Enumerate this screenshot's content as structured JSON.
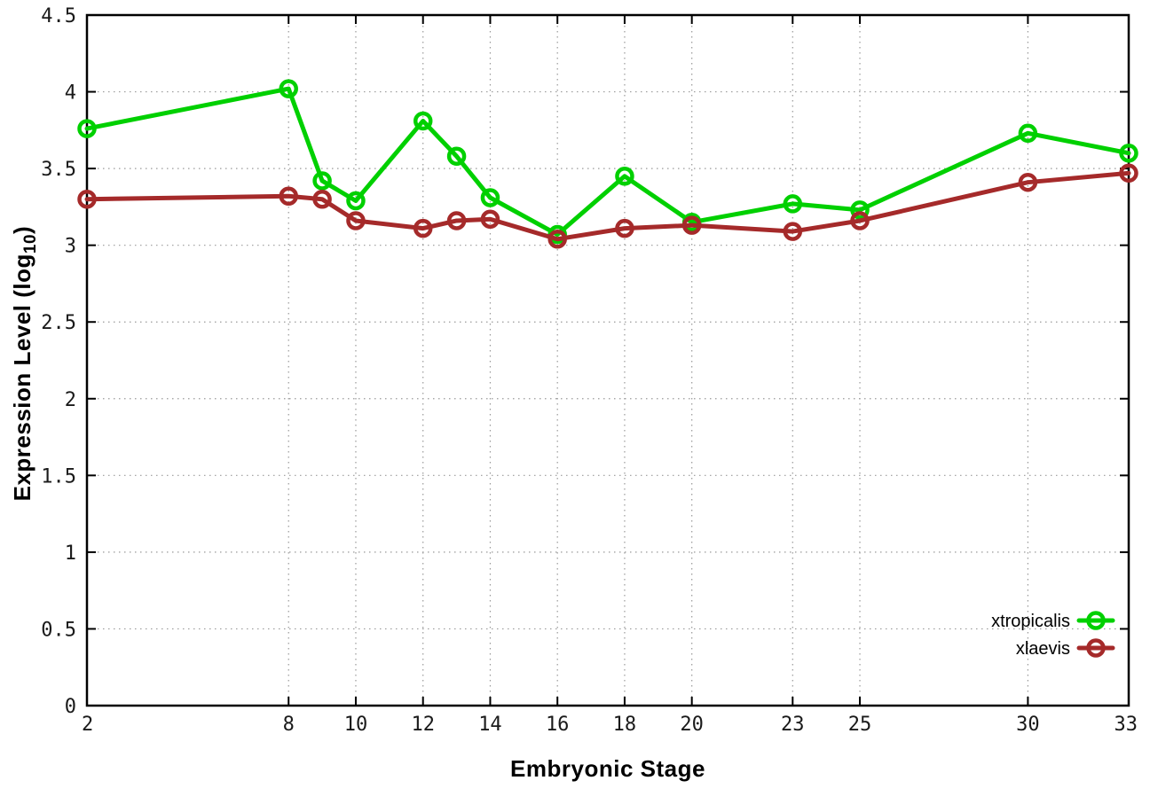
{
  "chart_data": {
    "type": "line",
    "title": "",
    "xlabel": "Embryonic Stage",
    "ylabel": "Expression Level (log10)",
    "ylabel_parts": {
      "main": "Expression Level (log",
      "sub": "10",
      "close": ")"
    },
    "x_range": [
      2,
      33
    ],
    "ylim": [
      0,
      4.5
    ],
    "x_ticks": [
      2,
      8,
      10,
      12,
      14,
      16,
      18,
      20,
      23,
      25,
      30,
      33
    ],
    "y_ticks": [
      "0",
      "0.5",
      "1",
      "1.5",
      "2",
      "2.5",
      "3",
      "3.5",
      "4",
      "4.5"
    ],
    "grid": true,
    "legend_position": "bottom-right-inside",
    "marker": "open-circle",
    "x": [
      2,
      8,
      9,
      10,
      12,
      13,
      14,
      16,
      18,
      20,
      23,
      25,
      30,
      33
    ],
    "series": [
      {
        "name": "xtropicalis",
        "color": "#00d000",
        "values": [
          3.76,
          4.02,
          3.42,
          3.29,
          3.81,
          3.58,
          3.31,
          3.07,
          3.45,
          3.15,
          3.27,
          3.23,
          3.73,
          3.6
        ]
      },
      {
        "name": "xlaevis",
        "color": "#a52a2a",
        "values": [
          3.3,
          3.32,
          3.3,
          3.16,
          3.11,
          3.16,
          3.17,
          3.04,
          3.11,
          3.13,
          3.09,
          3.16,
          3.41,
          3.47
        ]
      }
    ]
  },
  "colors": {
    "background": "#ffffff",
    "grid": "#999999",
    "axis_border": "#000000",
    "tick_text": "#1a1a1a"
  }
}
